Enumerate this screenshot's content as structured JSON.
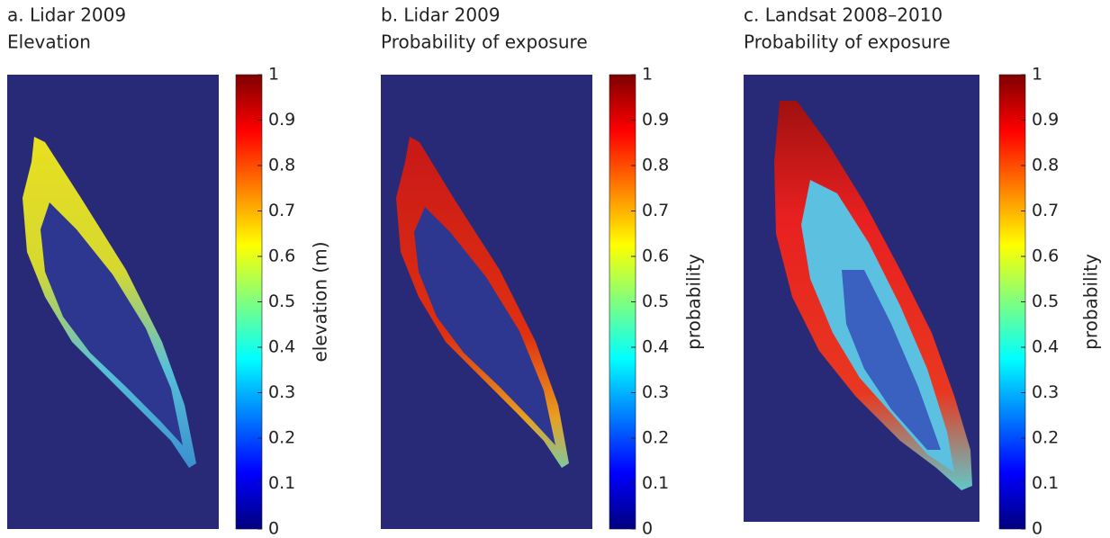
{
  "chart_data": [
    {
      "type": "heatmap",
      "title": "a. Lidar 2009",
      "subtitle": "Elevation",
      "colormap": "jet",
      "colorbar_label": "elevation (m)",
      "clim": [
        0,
        1
      ],
      "cticks": [
        0,
        0.1,
        0.2,
        0.3,
        0.4,
        0.5,
        0.6,
        0.7,
        0.8,
        0.9,
        1
      ]
    },
    {
      "type": "heatmap",
      "title": "b. Lidar 2009",
      "subtitle": "Probability of exposure",
      "colormap": "jet",
      "colorbar_label": "probability",
      "clim": [
        0,
        1
      ],
      "cticks": [
        0,
        0.1,
        0.2,
        0.3,
        0.4,
        0.5,
        0.6,
        0.7,
        0.8,
        0.9,
        1
      ]
    },
    {
      "type": "heatmap",
      "title": "c. Landsat 2008–2010",
      "subtitle": "Probability of exposure",
      "colormap": "jet",
      "colorbar_label": "probability",
      "clim": [
        0,
        1
      ],
      "cticks": [
        0,
        0.1,
        0.2,
        0.3,
        0.4,
        0.5,
        0.6,
        0.7,
        0.8,
        0.9,
        1
      ]
    }
  ]
}
